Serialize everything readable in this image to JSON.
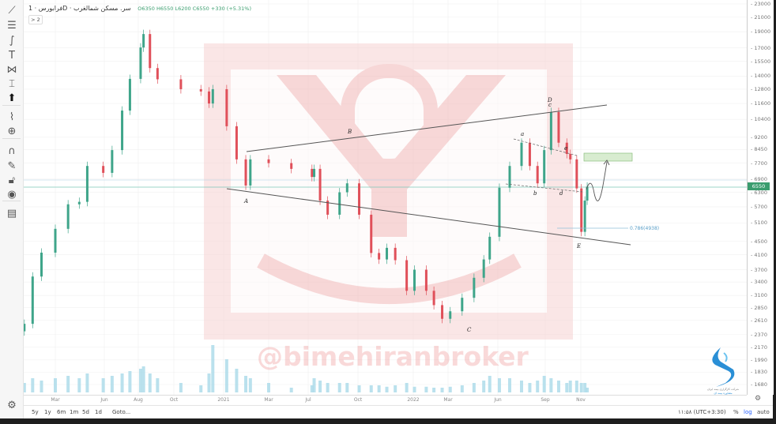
{
  "header": {
    "symbol": "فرابورس · 1D · سر. مسکن شمالغرب",
    "open": "O6350",
    "high": "H6550",
    "low": "L6200",
    "close": "C6550",
    "change": "+330 (+5.31%)",
    "collapse_label": "> 2"
  },
  "toolbar": {
    "icons": [
      "trend-line-icon",
      "fib-icon",
      "brush-icon",
      "text-icon",
      "pattern-icon",
      "measure-lines-icon",
      "arrow-up-icon",
      "ruler-icon",
      "zoom-in-icon",
      "magnet-icon",
      "lock-drawing-icon",
      "lock-icon",
      "eye-icon",
      "trash-icon",
      "settings-icon"
    ]
  },
  "bottom_bar": {
    "ranges": [
      "5y",
      "1y",
      "6m",
      "1m",
      "5d",
      "1d"
    ],
    "goto": "Goto...",
    "clock": "۱۱:۵۸ (UTC+3:30)",
    "percent": "%",
    "log": "log",
    "auto": "auto"
  },
  "watermark": {
    "text": "@bimehiranbroker"
  },
  "logo": {
    "caption_line1": "شرکت کارگزاری بیمه ایران",
    "caption_line2": "مشاوره بیمه ای"
  },
  "colors": {
    "up": "#3fa58a",
    "down": "#e0505a",
    "accent": "#2962ff",
    "price_tag": "#3a9d6e",
    "watermark": "#eb7878"
  },
  "chart_data": {
    "type": "candlestick",
    "scale": "log",
    "ylim": [
      1680,
      23000
    ],
    "last_price": "6550",
    "price_ticks": [
      "23000",
      "21000",
      "19000",
      "17000",
      "15500",
      "14000",
      "12800",
      "11600",
      "10400",
      "9200",
      "8450",
      "7700",
      "6900",
      "6300",
      "5700",
      "5100",
      "4500",
      "4100",
      "3700",
      "3400",
      "3100",
      "2850",
      "2610",
      "2370",
      "2170",
      "1990",
      "1830",
      "1680"
    ],
    "time_ticks": [
      {
        "label": "Mar",
        "date": "2020-03-01"
      },
      {
        "label": "Jun",
        "date": "2020-06-01"
      },
      {
        "label": "Aug",
        "date": "2020-08-01"
      },
      {
        "label": "Oct",
        "date": "2020-10-01"
      },
      {
        "label": "2021",
        "date": "2021-01-01"
      },
      {
        "label": "Mar",
        "date": "2021-03-01"
      },
      {
        "label": "Jul",
        "date": "2021-07-01"
      },
      {
        "label": "Oct",
        "date": "2021-10-01"
      },
      {
        "label": "2022",
        "date": "2022-01-01"
      },
      {
        "label": "Mar",
        "date": "2022-03-01"
      },
      {
        "label": "Jun",
        "date": "2022-06-01"
      },
      {
        "label": "Sep",
        "date": "2022-09-01"
      },
      {
        "label": "Nov",
        "date": "2022-11-01"
      }
    ],
    "closes": [
      [
        "2020-01-05",
        2550
      ],
      [
        "2020-01-20",
        3530
      ],
      [
        "2020-02-05",
        4160
      ],
      [
        "2020-03-01",
        4900
      ],
      [
        "2020-03-25",
        5800
      ],
      [
        "2020-04-15",
        5900
      ],
      [
        "2020-04-30",
        7550
      ],
      [
        "2020-05-30",
        7200
      ],
      [
        "2020-06-15",
        8420
      ],
      [
        "2020-07-03",
        11050
      ],
      [
        "2020-07-17",
        13740
      ],
      [
        "2020-08-05",
        17050
      ],
      [
        "2020-08-10",
        18700
      ],
      [
        "2020-08-21",
        14800
      ],
      [
        "2020-09-03",
        13700
      ],
      [
        "2020-10-14",
        12800
      ],
      [
        "2020-11-20",
        12600
      ],
      [
        "2020-12-05",
        11600
      ],
      [
        "2020-12-12",
        12800
      ],
      [
        "2021-01-05",
        9920
      ],
      [
        "2021-01-18",
        7900
      ],
      [
        "2021-01-30",
        6600
      ],
      [
        "2021-02-05",
        7900
      ],
      [
        "2021-03-01",
        7700
      ],
      [
        "2021-05-10",
        7400
      ],
      [
        "2021-07-08",
        7000
      ],
      [
        "2021-07-12",
        7400
      ],
      [
        "2021-07-23",
        5950
      ],
      [
        "2021-08-06",
        5400
      ],
      [
        "2021-08-28",
        6300
      ],
      [
        "2021-09-11",
        6700
      ],
      [
        "2021-10-03",
        5400
      ],
      [
        "2021-10-23",
        4150
      ],
      [
        "2021-11-05",
        3970
      ],
      [
        "2021-11-18",
        4300
      ],
      [
        "2021-12-02",
        3950
      ],
      [
        "2021-12-21",
        3200
      ],
      [
        "2022-01-03",
        3700
      ],
      [
        "2022-01-23",
        3200
      ],
      [
        "2022-02-05",
        2900
      ],
      [
        "2022-02-19",
        2640
      ],
      [
        "2022-03-05",
        2780
      ],
      [
        "2022-03-27",
        3050
      ],
      [
        "2022-04-18",
        3500
      ],
      [
        "2022-05-06",
        3970
      ],
      [
        "2022-05-17",
        4640
      ],
      [
        "2022-06-04",
        6500
      ],
      [
        "2022-06-24",
        7550
      ],
      [
        "2022-07-17",
        8860
      ],
      [
        "2022-08-02",
        7550
      ],
      [
        "2022-08-17",
        6700
      ],
      [
        "2022-08-30",
        8420
      ],
      [
        "2022-09-11",
        10940
      ],
      [
        "2022-09-24",
        8860
      ],
      [
        "2022-10-08",
        8200
      ],
      [
        "2022-10-14",
        7900
      ],
      [
        "2022-10-25",
        6470
      ],
      [
        "2022-11-02",
        4800
      ],
      [
        "2022-11-08",
        5950
      ],
      [
        "2022-11-12",
        6550
      ]
    ],
    "volume_relative": [
      0.2,
      0.3,
      0.25,
      0.3,
      0.35,
      0.3,
      0.4,
      0.3,
      0.35,
      0.4,
      0.45,
      0.5,
      0.55,
      0.4,
      0.3,
      0.2,
      0.15,
      0.4,
      1.0,
      0.7,
      0.5,
      0.35,
      0.3,
      0.2,
      0.1,
      0.15,
      0.3,
      0.25,
      0.2,
      0.2,
      0.2,
      0.15,
      0.15,
      0.15,
      0.12,
      0.15,
      0.2,
      0.12,
      0.12,
      0.1,
      0.1,
      0.12,
      0.15,
      0.2,
      0.25,
      0.35,
      0.3,
      0.3,
      0.25,
      0.2,
      0.25,
      0.35,
      0.3,
      0.25,
      0.2,
      0.25,
      0.25,
      0.2,
      0.2
    ],
    "annotations": {
      "labels": [
        "A",
        "B",
        "C",
        "D",
        "c",
        "a",
        "b",
        "d",
        "e",
        "E"
      ],
      "fib_label": "0.786(4938)"
    }
  }
}
